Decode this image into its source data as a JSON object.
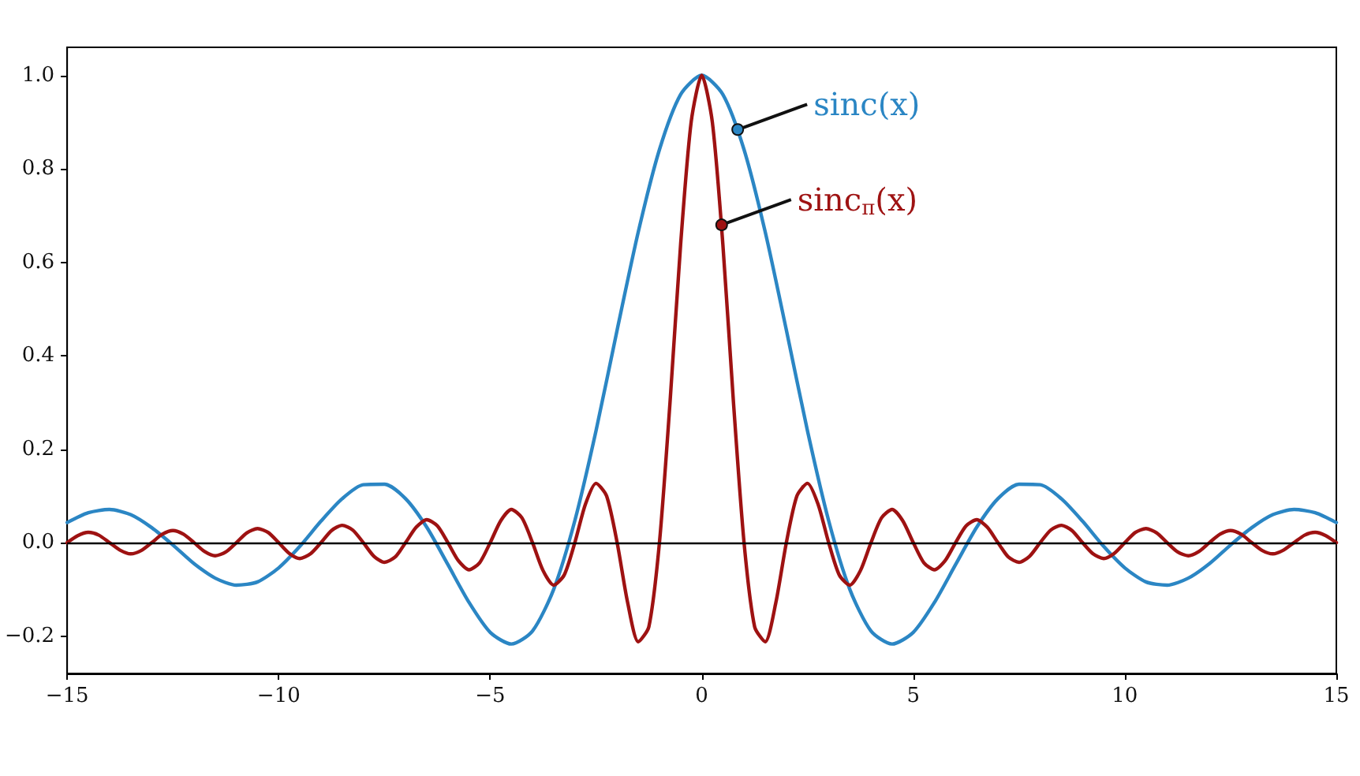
{
  "chart_data": {
    "type": "line",
    "xlim": [
      -15,
      15
    ],
    "ylim": [
      -0.28,
      1.06
    ],
    "xticks": [
      {
        "value": -15,
        "label": "−15"
      },
      {
        "value": -10,
        "label": "−10"
      },
      {
        "value": -5,
        "label": "−5"
      },
      0,
      5,
      10,
      15
    ],
    "yticks": [
      {
        "value": -0.2,
        "label": "−0.2"
      },
      {
        "value": 0,
        "label": "0.0"
      },
      0.2,
      0.4,
      0.6,
      0.8,
      {
        "value": 1,
        "label": "1.0"
      }
    ],
    "grid": false,
    "marker": "none",
    "line_style": "solid",
    "ref_lines": [
      {
        "axis": "y",
        "value": 0,
        "color": "#000000"
      }
    ],
    "annotations": [
      {
        "text": "sinc(x)",
        "x": 0.85,
        "y": 0.884
      },
      {
        "text": "sinc$_{π}$(x)",
        "x": 0.47,
        "y": 0.68
      }
    ],
    "series": [
      {
        "color": "#2b86c4",
        "x": [
          -15,
          -14.5,
          -14,
          -13.5,
          -13,
          -12.5,
          -12,
          -11.5,
          -11,
          -10.5,
          -10,
          -9.5,
          -9,
          -8.5,
          -8,
          -7.5,
          -7,
          -6.5,
          -6,
          -5.5,
          -5,
          -4.5,
          -4,
          -3.5,
          -3,
          -2.5,
          -2,
          -1.5,
          -1,
          -0.5,
          0,
          0.5,
          1,
          1.5,
          2,
          2.5,
          3,
          3.5,
          4,
          4.5,
          5,
          5.5,
          6,
          6.5,
          7,
          7.5,
          8,
          8.5,
          9,
          9.5,
          10,
          10.5,
          11,
          11.5,
          12,
          12.5,
          13,
          13.5,
          14,
          14.5,
          15
        ],
        "values": [
          0.043,
          0.064,
          0.071,
          0.06,
          0.032,
          -0.005,
          -0.045,
          -0.076,
          -0.091,
          -0.084,
          -0.054,
          -0.008,
          0.046,
          0.094,
          0.124,
          0.125,
          0.094,
          0.033,
          -0.047,
          -0.128,
          -0.192,
          -0.217,
          -0.189,
          -0.1,
          0.047,
          0.239,
          0.455,
          0.665,
          0.841,
          0.959,
          1,
          0.959,
          0.841,
          0.665,
          0.455,
          0.239,
          0.047,
          -0.1,
          -0.189,
          -0.217,
          -0.192,
          -0.128,
          -0.047,
          0.033,
          0.094,
          0.125,
          0.124,
          0.094,
          0.046,
          -0.008,
          -0.054,
          -0.084,
          -0.091,
          -0.076,
          -0.045,
          -0.005,
          0.032,
          0.06,
          0.071,
          0.064,
          0.043
        ]
      },
      {
        "color": "#9e1212",
        "x": [
          -15,
          -14.75,
          -14.5,
          -14.25,
          -14,
          -13.75,
          -13.5,
          -13.25,
          -13,
          -12.75,
          -12.5,
          -12.25,
          -12,
          -11.75,
          -11.5,
          -11.25,
          -11,
          -10.75,
          -10.5,
          -10.25,
          -10,
          -9.75,
          -9.5,
          -9.25,
          -9,
          -8.75,
          -8.5,
          -8.25,
          -8,
          -7.75,
          -7.5,
          -7.25,
          -7,
          -6.75,
          -6.5,
          -6.25,
          -6,
          -5.75,
          -5.5,
          -5.25,
          -5,
          -4.75,
          -4.5,
          -4.25,
          -4,
          -3.75,
          -3.5,
          -3.25,
          -3,
          -2.75,
          -2.5,
          -2.25,
          -2,
          -1.75,
          -1.5,
          -1.25,
          -1,
          -0.75,
          -0.5,
          -0.25,
          0,
          0.25,
          0.5,
          0.75,
          1,
          1.25,
          1.5,
          1.75,
          2,
          2.25,
          2.5,
          2.75,
          3,
          3.25,
          3.5,
          3.75,
          4,
          4.25,
          4.5,
          4.75,
          5,
          5.25,
          5.5,
          5.75,
          6,
          6.25,
          6.5,
          6.75,
          7,
          7.25,
          7.5,
          7.75,
          8,
          8.25,
          8.5,
          8.75,
          9,
          9.25,
          9.5,
          9.75,
          10,
          10.25,
          10.5,
          10.75,
          11,
          11.25,
          11.5,
          11.75,
          12,
          12.25,
          12.5,
          12.75,
          13,
          13.25,
          13.5,
          13.75,
          14,
          14.25,
          14.5,
          14.75,
          15
        ],
        "values": [
          0,
          0.015,
          0.022,
          0.016,
          0,
          -0.016,
          -0.024,
          -0.017,
          0,
          0.018,
          0.026,
          0.018,
          0,
          -0.019,
          -0.028,
          -0.02,
          0,
          0.021,
          0.03,
          0.022,
          0,
          -0.023,
          -0.034,
          -0.024,
          0,
          0.026,
          0.037,
          0.027,
          0,
          -0.029,
          -0.042,
          -0.031,
          0,
          0.033,
          0.049,
          0.036,
          0,
          -0.039,
          -0.058,
          -0.043,
          0,
          0.047,
          0.071,
          0.053,
          0,
          -0.06,
          -0.091,
          -0.069,
          0,
          0.082,
          0.127,
          0.1,
          0,
          -0.129,
          -0.212,
          -0.18,
          0,
          0.3,
          0.637,
          0.9,
          1,
          0.9,
          0.637,
          0.3,
          0,
          -0.18,
          -0.212,
          -0.129,
          0,
          0.1,
          0.127,
          0.082,
          0,
          -0.069,
          -0.091,
          -0.06,
          0,
          0.053,
          0.071,
          0.047,
          0,
          -0.043,
          -0.058,
          -0.039,
          0,
          0.036,
          0.049,
          0.033,
          0,
          -0.031,
          -0.042,
          -0.029,
          0,
          0.027,
          0.037,
          0.026,
          0,
          -0.024,
          -0.034,
          -0.023,
          0,
          0.022,
          0.03,
          0.021,
          0,
          -0.02,
          -0.028,
          -0.019,
          0,
          0.018,
          0.026,
          0.018,
          0,
          -0.017,
          -0.024,
          -0.016,
          0,
          0.016,
          0.022,
          0.015,
          0
        ]
      }
    ]
  }
}
